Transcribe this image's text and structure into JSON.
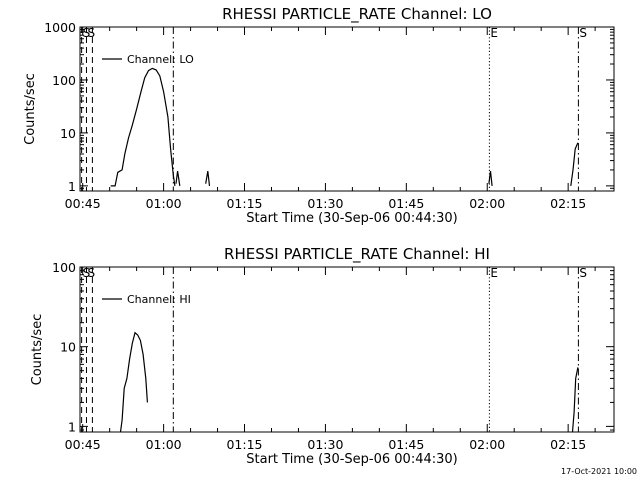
{
  "timestamp": "17-Oct-2021 10:00",
  "chart_data": [
    {
      "type": "line",
      "title": "RHESSI PARTICLE_RATE Channel: LO",
      "xlabel": "Start Time (30-Sep-06 00:44:30)",
      "ylabel": "Counts/sec",
      "yscale": "log",
      "xlim": [
        44.5,
        143.5
      ],
      "ylim": [
        0.8,
        1000
      ],
      "x_ticks": [
        {
          "x": 45,
          "label": "00:45"
        },
        {
          "x": 60,
          "label": "01:00"
        },
        {
          "x": 75,
          "label": "01:15"
        },
        {
          "x": 90,
          "label": "01:30"
        },
        {
          "x": 105,
          "label": "01:45"
        },
        {
          "x": 120,
          "label": "02:00"
        },
        {
          "x": 135,
          "label": "02:15"
        }
      ],
      "y_ticks": [
        {
          "y": 1,
          "label": "1"
        },
        {
          "y": 10,
          "label": "10"
        },
        {
          "y": 100,
          "label": "100"
        },
        {
          "y": 1000,
          "label": "1000"
        }
      ],
      "legend": {
        "position": "top-left",
        "entries": [
          "Channel: LO"
        ]
      },
      "markers": [
        {
          "x": 44.8,
          "style": "dashed",
          "label": "S"
        },
        {
          "x": 45.7,
          "style": "dashed",
          "label": "S"
        },
        {
          "x": 46.8,
          "style": "dashed",
          "label": ""
        },
        {
          "x": 61.8,
          "style": "dashdot",
          "label": ""
        },
        {
          "x": 120.4,
          "style": "dotted",
          "label": "E"
        },
        {
          "x": 136.9,
          "style": "dashdot",
          "label": "S"
        }
      ],
      "series": [
        {
          "segments": [
            [
              [
                50.2,
                1
              ],
              [
                51.0,
                1
              ],
              [
                51.5,
                1.8
              ],
              [
                52.3,
                2
              ],
              [
                52.8,
                4
              ],
              [
                53.5,
                8
              ],
              [
                54.2,
                14
              ],
              [
                55.0,
                28
              ],
              [
                55.8,
                60
              ],
              [
                56.5,
                110
              ],
              [
                57.2,
                150
              ],
              [
                57.9,
                165
              ],
              [
                58.6,
                155
              ],
              [
                59.3,
                120
              ],
              [
                60.0,
                60
              ],
              [
                60.8,
                20
              ],
              [
                61.3,
                5
              ],
              [
                61.8,
                1.6
              ],
              [
                62.1,
                1
              ]
            ],
            [
              [
                62.3,
                1.1
              ],
              [
                62.6,
                1.9
              ],
              [
                63.0,
                1
              ]
            ],
            [
              [
                67.8,
                1.1
              ],
              [
                68.2,
                1.9
              ],
              [
                68.5,
                1
              ]
            ],
            [
              [
                120.3,
                1.1
              ],
              [
                120.6,
                1.9
              ],
              [
                120.9,
                1
              ]
            ],
            [
              [
                135.5,
                1
              ],
              [
                135.9,
                2
              ],
              [
                136.3,
                5
              ],
              [
                136.8,
                6.5
              ]
            ]
          ]
        }
      ]
    },
    {
      "type": "line",
      "title": "RHESSI PARTICLE_RATE Channel: HI",
      "xlabel": "Start Time (30-Sep-06 00:44:30)",
      "ylabel": "Counts/sec",
      "yscale": "log",
      "xlim": [
        44.5,
        143.5
      ],
      "ylim": [
        0.85,
        100
      ],
      "x_ticks": [
        {
          "x": 45,
          "label": "00:45"
        },
        {
          "x": 60,
          "label": "01:00"
        },
        {
          "x": 75,
          "label": "01:15"
        },
        {
          "x": 90,
          "label": "01:30"
        },
        {
          "x": 105,
          "label": "01:45"
        },
        {
          "x": 120,
          "label": "02:00"
        },
        {
          "x": 135,
          "label": "02:15"
        }
      ],
      "y_ticks": [
        {
          "y": 1,
          "label": "1"
        },
        {
          "y": 10,
          "label": "10"
        },
        {
          "y": 100,
          "label": "100"
        }
      ],
      "legend": {
        "position": "top-left",
        "entries": [
          "Channel: HI"
        ]
      },
      "markers": [
        {
          "x": 44.8,
          "style": "dashed",
          "label": "S"
        },
        {
          "x": 45.7,
          "style": "dashed",
          "label": "S"
        },
        {
          "x": 46.8,
          "style": "dashed",
          "label": ""
        },
        {
          "x": 61.8,
          "style": "dashdot",
          "label": ""
        },
        {
          "x": 120.4,
          "style": "dotted",
          "label": "E"
        },
        {
          "x": 136.9,
          "style": "dashdot",
          "label": "S"
        }
      ],
      "series": [
        {
          "segments": [
            [
              [
                52.0,
                0.85
              ],
              [
                52.3,
                1.2
              ],
              [
                52.7,
                3
              ],
              [
                53.2,
                4
              ],
              [
                53.7,
                7
              ],
              [
                54.2,
                11
              ],
              [
                54.7,
                15
              ],
              [
                55.2,
                14
              ],
              [
                55.7,
                12
              ],
              [
                56.2,
                8
              ],
              [
                56.7,
                4
              ],
              [
                57.0,
                2
              ]
            ],
            [
              [
                135.8,
                0.85
              ],
              [
                136.1,
                1.5
              ],
              [
                136.4,
                4
              ],
              [
                136.8,
                5.5
              ]
            ]
          ]
        }
      ]
    }
  ]
}
